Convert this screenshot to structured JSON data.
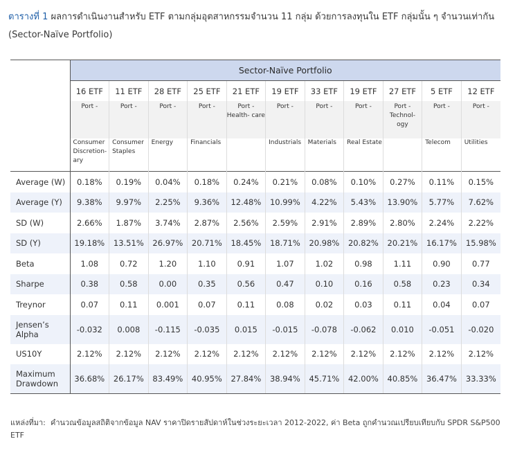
{
  "title": {
    "label": "ตารางที่ 1",
    "text": "ผลการดำเนินงานสำหรับ ETF ตามกลุ่มอุตสาหกรรมจำนวน 11 กลุ่ม ด้วยการลงทุนใน ETF กลุ่มนั้น ๆ จำนวนเท่ากัน (Sector-Naïve Portfolio)"
  },
  "table": {
    "header": "Sector-Naïve Portfolio",
    "etf_counts": [
      "16 ETF",
      "11 ETF",
      "28 ETF",
      "25 ETF",
      "21 ETF",
      "19 ETF",
      "33 ETF",
      "19 ETF",
      "27 ETF",
      "5 ETF",
      "12 ETF"
    ],
    "ports": [
      "Port -",
      "Port -",
      "Port -",
      "Port -",
      "Port - Health- care",
      "Port -",
      "Port -",
      "Port -",
      "Port - Technol- ogy",
      "Port -",
      "Port -"
    ],
    "sectors": [
      "Consumer Discretion- ary",
      "Consumer Staples",
      "Energy",
      "Financials",
      "",
      "Industrials",
      "Materials",
      "Real Estate",
      "",
      "Telecom",
      "Utilities"
    ],
    "rows": [
      {
        "label": "Average (W)",
        "values": [
          "0.18%",
          "0.19%",
          "0.04%",
          "0.18%",
          "0.24%",
          "0.21%",
          "0.08%",
          "0.10%",
          "0.27%",
          "0.11%",
          "0.15%"
        ]
      },
      {
        "label": "Average (Y)",
        "values": [
          "9.38%",
          "9.97%",
          "2.25%",
          "9.36%",
          "12.48%",
          "10.99%",
          "4.22%",
          "5.43%",
          "13.90%",
          "5.77%",
          "7.62%"
        ]
      },
      {
        "label": "SD (W)",
        "values": [
          "2.66%",
          "1.87%",
          "3.74%",
          "2.87%",
          "2.56%",
          "2.59%",
          "2.91%",
          "2.89%",
          "2.80%",
          "2.24%",
          "2.22%"
        ]
      },
      {
        "label": "SD (Y)",
        "values": [
          "19.18%",
          "13.51%",
          "26.97%",
          "20.71%",
          "18.45%",
          "18.71%",
          "20.98%",
          "20.82%",
          "20.21%",
          "16.17%",
          "15.98%"
        ]
      },
      {
        "label": "Beta",
        "values": [
          "1.08",
          "0.72",
          "1.20",
          "1.10",
          "0.91",
          "1.07",
          "1.02",
          "0.98",
          "1.11",
          "0.90",
          "0.77"
        ]
      },
      {
        "label": "Sharpe",
        "values": [
          "0.38",
          "0.58",
          "0.00",
          "0.35",
          "0.56",
          "0.47",
          "0.10",
          "0.16",
          "0.58",
          "0.23",
          "0.34"
        ]
      },
      {
        "label": "Treynor",
        "values": [
          "0.07",
          "0.11",
          "0.001",
          "0.07",
          "0.11",
          "0.08",
          "0.02",
          "0.03",
          "0.11",
          "0.04",
          "0.07"
        ]
      },
      {
        "label": "Jensen’s Alpha",
        "values": [
          "-0.032",
          "0.008",
          "-0.115",
          "-0.035",
          "0.015",
          "-0.015",
          "-0.078",
          "-0.062",
          "0.010",
          "-0.051",
          "-0.020"
        ]
      },
      {
        "label": "US10Y",
        "values": [
          "2.12%",
          "2.12%",
          "2.12%",
          "2.12%",
          "2.12%",
          "2.12%",
          "2.12%",
          "2.12%",
          "2.12%",
          "2.12%",
          "2.12%"
        ]
      },
      {
        "label": "Maximum Drawdown",
        "values": [
          "36.68%",
          "26.17%",
          "83.49%",
          "40.95%",
          "27.84%",
          "38.94%",
          "45.71%",
          "42.00%",
          "40.85%",
          "36.47%",
          "33.33%"
        ]
      }
    ]
  },
  "source": {
    "label": "แหล่งที่มา:",
    "text": "คำนวณข้อมูลสถิติจากข้อมูล NAV ราคาปิดรายสัปดาห์ในช่วงระยะเวลา 2012-2022, ค่า Beta ถูกคำนวณเปรียบเทียบกับ SPDR S&P500 ETF"
  }
}
